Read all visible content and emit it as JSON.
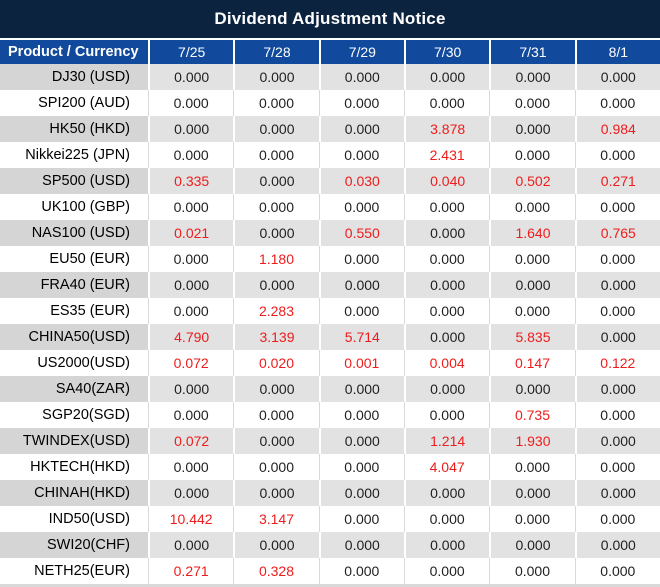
{
  "title": "Dividend Adjustment Notice",
  "table": {
    "product_header": "Product / Currency",
    "date_headers": [
      "7/25",
      "7/28",
      "7/29",
      "7/30",
      "7/31",
      "8/1"
    ],
    "rows": [
      {
        "product": "DJ30 (USD)",
        "values": [
          "0.000",
          "0.000",
          "0.000",
          "0.000",
          "0.000",
          "0.000"
        ]
      },
      {
        "product": "SPI200 (AUD)",
        "values": [
          "0.000",
          "0.000",
          "0.000",
          "0.000",
          "0.000",
          "0.000"
        ]
      },
      {
        "product": "HK50 (HKD)",
        "values": [
          "0.000",
          "0.000",
          "0.000",
          "3.878",
          "0.000",
          "0.984"
        ]
      },
      {
        "product": "Nikkei225 (JPN)",
        "values": [
          "0.000",
          "0.000",
          "0.000",
          "2.431",
          "0.000",
          "0.000"
        ]
      },
      {
        "product": "SP500 (USD)",
        "values": [
          "0.335",
          "0.000",
          "0.030",
          "0.040",
          "0.502",
          "0.271"
        ]
      },
      {
        "product": "UK100 (GBP)",
        "values": [
          "0.000",
          "0.000",
          "0.000",
          "0.000",
          "0.000",
          "0.000"
        ]
      },
      {
        "product": "NAS100 (USD)",
        "values": [
          "0.021",
          "0.000",
          "0.550",
          "0.000",
          "1.640",
          "0.765"
        ]
      },
      {
        "product": "EU50 (EUR)",
        "values": [
          "0.000",
          "1.180",
          "0.000",
          "0.000",
          "0.000",
          "0.000"
        ]
      },
      {
        "product": "FRA40 (EUR)",
        "values": [
          "0.000",
          "0.000",
          "0.000",
          "0.000",
          "0.000",
          "0.000"
        ]
      },
      {
        "product": "ES35 (EUR)",
        "values": [
          "0.000",
          "2.283",
          "0.000",
          "0.000",
          "0.000",
          "0.000"
        ]
      },
      {
        "product": "CHINA50(USD)",
        "values": [
          "4.790",
          "3.139",
          "5.714",
          "0.000",
          "5.835",
          "0.000"
        ]
      },
      {
        "product": "US2000(USD)",
        "values": [
          "0.072",
          "0.020",
          "0.001",
          "0.004",
          "0.147",
          "0.122"
        ]
      },
      {
        "product": "SA40(ZAR)",
        "values": [
          "0.000",
          "0.000",
          "0.000",
          "0.000",
          "0.000",
          "0.000"
        ]
      },
      {
        "product": "SGP20(SGD)",
        "values": [
          "0.000",
          "0.000",
          "0.000",
          "0.000",
          "0.735",
          "0.000"
        ]
      },
      {
        "product": "TWINDEX(USD)",
        "values": [
          "0.072",
          "0.000",
          "0.000",
          "1.214",
          "1.930",
          "0.000"
        ]
      },
      {
        "product": "HKTECH(HKD)",
        "values": [
          "0.000",
          "0.000",
          "0.000",
          "4.047",
          "0.000",
          "0.000"
        ]
      },
      {
        "product": "CHINAH(HKD)",
        "values": [
          "0.000",
          "0.000",
          "0.000",
          "0.000",
          "0.000",
          "0.000"
        ]
      },
      {
        "product": "IND50(USD)",
        "values": [
          "10.442",
          "3.147",
          "0.000",
          "0.000",
          "0.000",
          "0.000"
        ]
      },
      {
        "product": "SWI20(CHF)",
        "values": [
          "0.000",
          "0.000",
          "0.000",
          "0.000",
          "0.000",
          "0.000"
        ]
      },
      {
        "product": "NETH25(EUR)",
        "values": [
          "0.271",
          "0.328",
          "0.000",
          "0.000",
          "0.000",
          "0.000"
        ]
      }
    ]
  },
  "colors": {
    "title_bar_bg": "#0c2340",
    "header_bg": "#11499c",
    "stripe_bg": "#e2e2e2",
    "stripe_label_bg": "#d5d5d5",
    "grid_line": "#d9d9d9",
    "zero_text": "#1f1f1f",
    "nonzero_text": "#ee1c1c"
  }
}
